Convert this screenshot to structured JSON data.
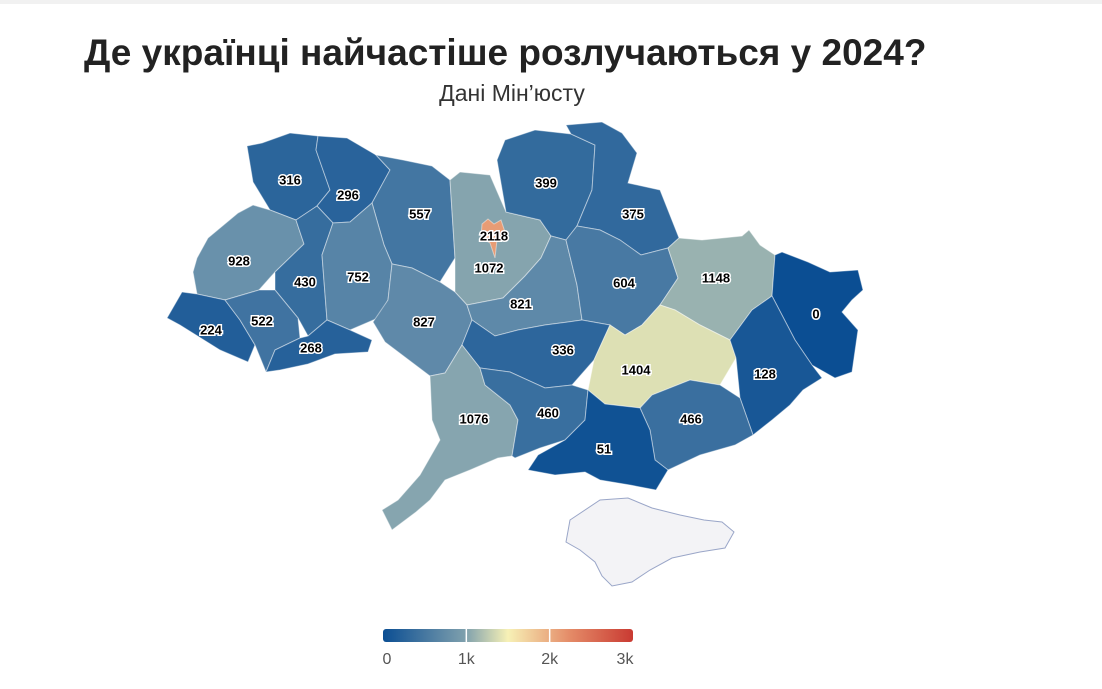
{
  "header": {
    "title": "Де українці найчастіше розлучаються у 2024?",
    "subtitle": "Дані Мін’юсту"
  },
  "map_data": {
    "type": "choropleth",
    "no_data_color": "#f3f3f6",
    "regions": [
      {
        "id": "volyn",
        "value": 316
      },
      {
        "id": "rivne",
        "value": 296
      },
      {
        "id": "zhytomyr",
        "value": 557
      },
      {
        "id": "kyiv-oblast",
        "value": 1072
      },
      {
        "id": "kyiv-city",
        "value": 2118
      },
      {
        "id": "chernihiv",
        "value": 399
      },
      {
        "id": "sumy",
        "value": 375
      },
      {
        "id": "lviv",
        "value": 928
      },
      {
        "id": "ternopil",
        "value": 430
      },
      {
        "id": "khmelnytskyi",
        "value": 752
      },
      {
        "id": "vinnytsia",
        "value": 827
      },
      {
        "id": "cherkasy",
        "value": 821
      },
      {
        "id": "poltava",
        "value": 604
      },
      {
        "id": "kharkiv",
        "value": 1148
      },
      {
        "id": "luhansk",
        "value": 0
      },
      {
        "id": "zakarpattia",
        "value": 224
      },
      {
        "id": "ivano-frankivsk",
        "value": 522
      },
      {
        "id": "chernivtsi",
        "value": 268
      },
      {
        "id": "kirovohrad",
        "value": 336
      },
      {
        "id": "dnipropetrovsk",
        "value": 1404
      },
      {
        "id": "donetsk",
        "value": 128
      },
      {
        "id": "odesa",
        "value": 1076
      },
      {
        "id": "mykolaiv",
        "value": 460
      },
      {
        "id": "zaporizhzhia",
        "value": 466
      },
      {
        "id": "kherson",
        "value": 51
      }
    ]
  },
  "legend": {
    "min": 0,
    "max": 3000,
    "colors": [
      "#0b4e93",
      "#6f95ad",
      "#f7f1b6",
      "#e48a67",
      "#c93a32"
    ],
    "ticks": [
      {
        "value": 0,
        "label": "0"
      },
      {
        "value": 1000,
        "label": "1k"
      },
      {
        "value": 2000,
        "label": "2k"
      },
      {
        "value": 3000,
        "label": "3k"
      }
    ]
  }
}
